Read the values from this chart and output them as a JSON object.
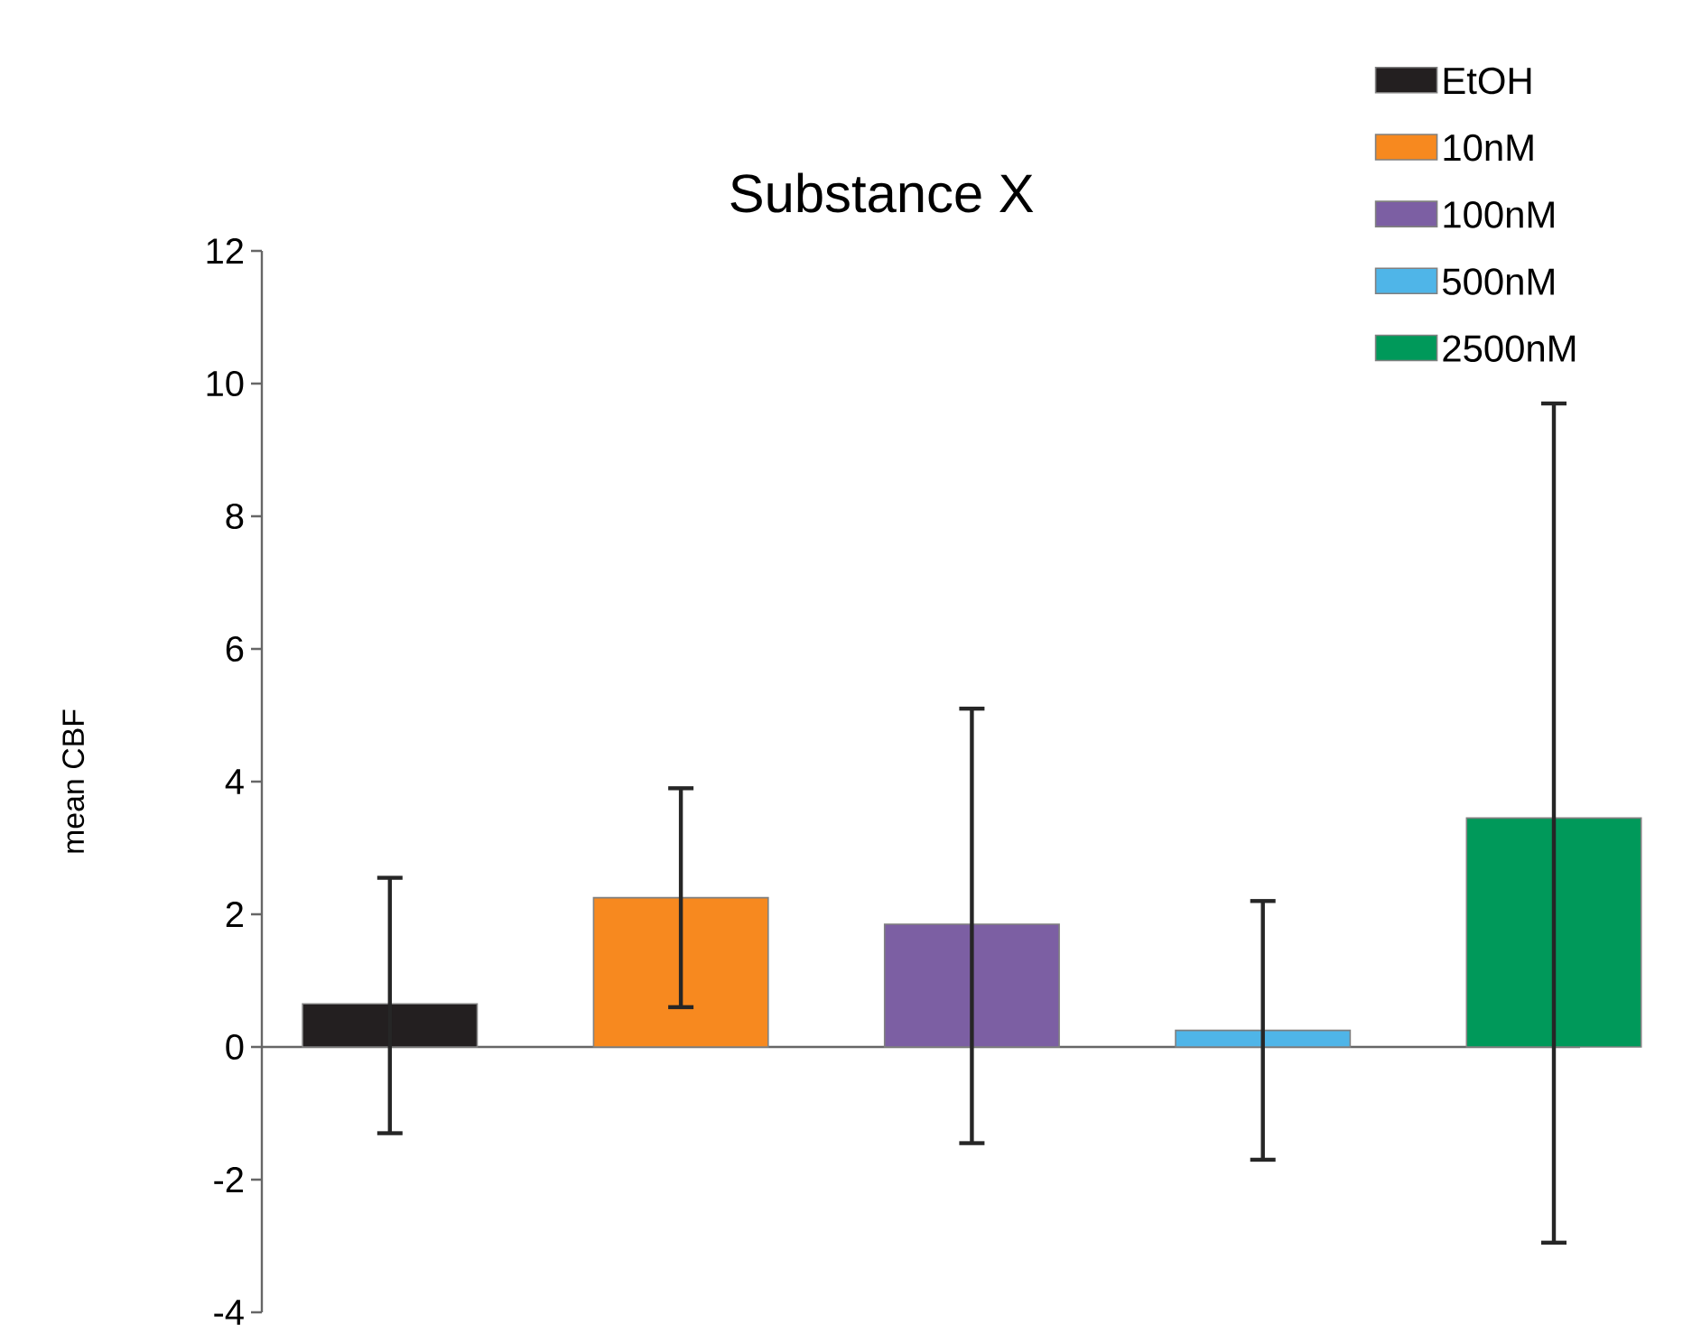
{
  "chart_data": {
    "type": "bar",
    "title": "Substance X",
    "ylabel": "mean CBF",
    "categories": [
      null,
      null,
      null,
      null,
      null
    ],
    "series": [
      {
        "name": "EtOH",
        "color": "#231f20",
        "values": [
          0.65,
          null,
          null,
          null,
          null
        ],
        "errors": [
          [
            -1.3,
            2.55
          ],
          null,
          null,
          null,
          null
        ]
      },
      {
        "name": "10nM",
        "color": "#f7891f",
        "values": [
          null,
          2.25,
          null,
          null,
          null
        ],
        "errors": [
          null,
          [
            0.6,
            3.9
          ],
          null,
          null,
          null
        ]
      },
      {
        "name": "100nM",
        "color": "#7c5fa3",
        "values": [
          null,
          null,
          1.85,
          null,
          null
        ],
        "errors": [
          null,
          null,
          [
            -1.45,
            5.1
          ],
          null,
          null
        ]
      },
      {
        "name": "500nM",
        "color": "#4fb5e8",
        "values": [
          null,
          null,
          null,
          0.25,
          null
        ],
        "errors": [
          null,
          null,
          null,
          [
            -1.7,
            2.2
          ],
          null
        ]
      },
      {
        "name": "2500nM",
        "color": "#00995a",
        "values": [
          null,
          null,
          null,
          null,
          3.45
        ],
        "errors": [
          null,
          null,
          null,
          null,
          [
            -2.95,
            9.7
          ]
        ]
      }
    ],
    "ylim": [
      -4,
      12
    ],
    "yticks": [
      -4,
      -2,
      0,
      2,
      4,
      6,
      8,
      10,
      12
    ],
    "tick_labels": "y",
    "legend": "top right"
  }
}
